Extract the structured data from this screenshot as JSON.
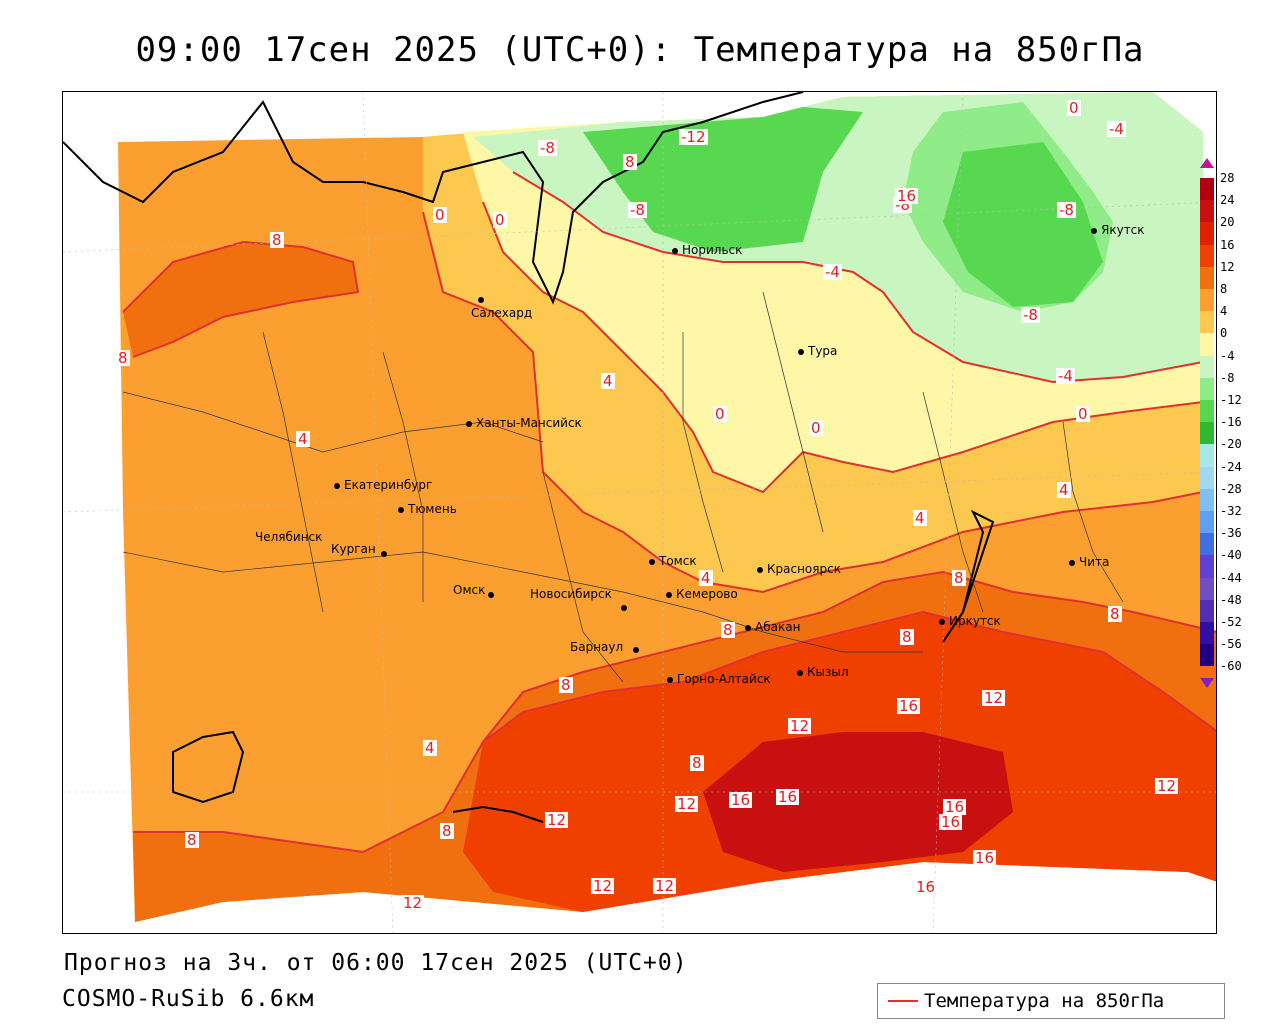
{
  "title": "09:00 17сен 2025 (UTC+0): Температура на 850гПа",
  "footer": {
    "forecast": "Прогноз на 3ч. от 06:00 17сен 2025 (UTC+0)",
    "model": "COSMO-RuSib 6.6км"
  },
  "legend": {
    "label": "Температура на 850гПа",
    "color": "#e03030"
  },
  "colorscale": {
    "ticks": [
      "28",
      "24",
      "20",
      "16",
      "12",
      "8",
      "4",
      "0",
      "-4",
      "-8",
      "-12",
      "-16",
      "-20",
      "-24",
      "-28",
      "-32",
      "-36",
      "-40",
      "-44",
      "-48",
      "-52",
      "-56",
      "-60"
    ],
    "colors": [
      "#b00010",
      "#c81010",
      "#e02000",
      "#f04000",
      "#f07010",
      "#fba030",
      "#fdc850",
      "#fff7a8",
      "#c8f5c0",
      "#90ec88",
      "#58d850",
      "#30b830",
      "#a8e8e8",
      "#a0d8f0",
      "#80c0f0",
      "#60a0f0",
      "#4070e0",
      "#6040d0",
      "#7050c0",
      "#5030b0",
      "#3010a0",
      "#200080"
    ]
  },
  "cities": [
    {
      "name": "Норильск"
    },
    {
      "name": "Якутск"
    },
    {
      "name": "Салехард"
    },
    {
      "name": "Тура"
    },
    {
      "name": "Ханты-Мансийск"
    },
    {
      "name": "Екатеринбург"
    },
    {
      "name": "Тюмень"
    },
    {
      "name": "Челябинск"
    },
    {
      "name": "Курган"
    },
    {
      "name": "Томск"
    },
    {
      "name": "Красноярск"
    },
    {
      "name": "Омск"
    },
    {
      "name": "Новосибирск"
    },
    {
      "name": "Кемерово"
    },
    {
      "name": "Абакан"
    },
    {
      "name": "Иркутск"
    },
    {
      "name": "Барнаул"
    },
    {
      "name": "Горно-Алтайск"
    },
    {
      "name": "Кызыл"
    },
    {
      "name": "Чита"
    }
  ],
  "contour_labels": [
    "-12",
    "-8",
    "-8",
    "-8",
    "-8",
    "-4",
    "-4",
    "-4",
    "-8",
    "0",
    "0",
    "0",
    "0",
    "0",
    "0",
    "4",
    "4",
    "4",
    "4",
    "4",
    "4",
    "8",
    "8",
    "8",
    "8",
    "8",
    "8",
    "8",
    "8",
    "8",
    "8",
    "8",
    "12",
    "12",
    "12",
    "12",
    "12",
    "12",
    "12",
    "12",
    "16",
    "16",
    "16",
    "16",
    "16",
    "16",
    "16",
    "16"
  ]
}
